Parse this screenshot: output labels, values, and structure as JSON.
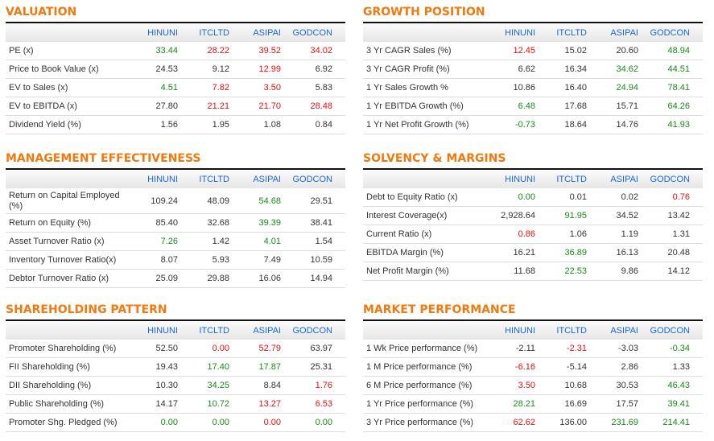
{
  "columns": [
    "HINUNI",
    "ITCLTD",
    "ASIPAI",
    "GODCON"
  ],
  "colors": {
    "positive": "#188a18",
    "negative": "#e81010",
    "title": "#f07a10",
    "header": "#1a66e0"
  },
  "panels": [
    {
      "title": "VALUATION",
      "rows": [
        {
          "label": "PE (x)",
          "values": [
            [
              "33.44",
              "g"
            ],
            [
              "28.22",
              "r"
            ],
            [
              "39.52",
              "r"
            ],
            [
              "34.02",
              "r"
            ]
          ]
        },
        {
          "label": "Price to Book Value (x)",
          "values": [
            [
              "24.53",
              ""
            ],
            [
              "9.12",
              ""
            ],
            [
              "12.99",
              "r"
            ],
            [
              "6.92",
              ""
            ]
          ]
        },
        {
          "label": "EV to Sales (x)",
          "values": [
            [
              "4.51",
              "g"
            ],
            [
              "7.82",
              "r"
            ],
            [
              "3.50",
              "r"
            ],
            [
              "5.83",
              ""
            ]
          ]
        },
        {
          "label": "EV to EBITDA (x)",
          "values": [
            [
              "27.80",
              ""
            ],
            [
              "21.21",
              "r"
            ],
            [
              "21.70",
              "r"
            ],
            [
              "28.48",
              "r"
            ]
          ]
        },
        {
          "label": "Dividend Yield (%)",
          "values": [
            [
              "1.56",
              ""
            ],
            [
              "1.95",
              ""
            ],
            [
              "1.08",
              ""
            ],
            [
              "0.84",
              ""
            ]
          ]
        }
      ]
    },
    {
      "title": "GROWTH POSITION",
      "rows": [
        {
          "label": "3 Yr CAGR Sales (%)",
          "values": [
            [
              "12.45",
              "r"
            ],
            [
              "15.02",
              ""
            ],
            [
              "20.60",
              ""
            ],
            [
              "48.94",
              "g"
            ]
          ]
        },
        {
          "label": "3 Yr CAGR Profit (%)",
          "values": [
            [
              "6.62",
              ""
            ],
            [
              "16.34",
              ""
            ],
            [
              "34.62",
              "g"
            ],
            [
              "44.51",
              "g"
            ]
          ]
        },
        {
          "label": "1 Yr Sales Growth %",
          "values": [
            [
              "10.86",
              ""
            ],
            [
              "16.40",
              ""
            ],
            [
              "24.94",
              "g"
            ],
            [
              "78.41",
              "g"
            ]
          ]
        },
        {
          "label": "1 Yr EBITDA Growth (%)",
          "values": [
            [
              "6.48",
              "g"
            ],
            [
              "17.68",
              ""
            ],
            [
              "15.71",
              ""
            ],
            [
              "64.26",
              "g"
            ]
          ]
        },
        {
          "label": "1 Yr Net Profit Growth (%)",
          "values": [
            [
              "-0.73",
              "g"
            ],
            [
              "18.64",
              ""
            ],
            [
              "14.76",
              ""
            ],
            [
              "41.93",
              "g"
            ]
          ]
        }
      ]
    },
    {
      "title": "MANAGEMENT EFFECTIVENESS",
      "rows": [
        {
          "label": "Return on Capital Employed (%)",
          "values": [
            [
              "109.24",
              ""
            ],
            [
              "48.09",
              ""
            ],
            [
              "54.68",
              "g"
            ],
            [
              "29.51",
              ""
            ]
          ]
        },
        {
          "label": "Return on Equity (%)",
          "values": [
            [
              "85.40",
              ""
            ],
            [
              "32.68",
              ""
            ],
            [
              "39.39",
              "g"
            ],
            [
              "38.41",
              ""
            ]
          ]
        },
        {
          "label": "Asset Turnover Ratio (x)",
          "values": [
            [
              "7.26",
              "g"
            ],
            [
              "1.42",
              ""
            ],
            [
              "4.01",
              "g"
            ],
            [
              "1.54",
              ""
            ]
          ]
        },
        {
          "label": "Inventory Turnover Ratio(x)",
          "values": [
            [
              "8.07",
              ""
            ],
            [
              "5.93",
              ""
            ],
            [
              "7.49",
              ""
            ],
            [
              "10.59",
              ""
            ]
          ]
        },
        {
          "label": "Debtor Turnover Ratio (x)",
          "values": [
            [
              "25.09",
              ""
            ],
            [
              "29.88",
              ""
            ],
            [
              "16.06",
              ""
            ],
            [
              "14.94",
              ""
            ]
          ]
        }
      ]
    },
    {
      "title": "SOLVENCY & MARGINS",
      "rows": [
        {
          "label": "Debt to Equity Ratio (x)",
          "values": [
            [
              "0.00",
              "g"
            ],
            [
              "0.01",
              ""
            ],
            [
              "0.02",
              ""
            ],
            [
              "0.76",
              "r"
            ]
          ]
        },
        {
          "label": "Interest Coverage(x)",
          "values": [
            [
              "2,928.64",
              ""
            ],
            [
              "91.95",
              "g"
            ],
            [
              "34.52",
              ""
            ],
            [
              "13.42",
              ""
            ]
          ]
        },
        {
          "label": "Current Ratio (x)",
          "values": [
            [
              "0.86",
              "r"
            ],
            [
              "1.06",
              ""
            ],
            [
              "1.19",
              ""
            ],
            [
              "1.31",
              ""
            ]
          ]
        },
        {
          "label": "EBITDA Margin (%)",
          "values": [
            [
              "16.21",
              ""
            ],
            [
              "36.89",
              "g"
            ],
            [
              "16.13",
              ""
            ],
            [
              "20.48",
              ""
            ]
          ]
        },
        {
          "label": "Net Profit Margin (%)",
          "values": [
            [
              "11.68",
              ""
            ],
            [
              "22.53",
              "g"
            ],
            [
              "9.86",
              ""
            ],
            [
              "14.12",
              ""
            ]
          ]
        }
      ]
    },
    {
      "title": "SHAREHOLDING PATTERN",
      "rows": [
        {
          "label": "Promoter Shareholding (%)",
          "values": [
            [
              "52.50",
              ""
            ],
            [
              "0.00",
              "r"
            ],
            [
              "52.79",
              "r"
            ],
            [
              "63.97",
              ""
            ]
          ]
        },
        {
          "label": "FII Shareholding (%)",
          "values": [
            [
              "19.43",
              ""
            ],
            [
              "17.40",
              "g"
            ],
            [
              "17.87",
              "g"
            ],
            [
              "25.31",
              ""
            ]
          ]
        },
        {
          "label": "DII Shareholding (%)",
          "values": [
            [
              "10.30",
              ""
            ],
            [
              "34.25",
              "g"
            ],
            [
              "8.84",
              ""
            ],
            [
              "1.76",
              "r"
            ]
          ]
        },
        {
          "label": "Public Shareholding (%)",
          "values": [
            [
              "14.17",
              ""
            ],
            [
              "10.72",
              "g"
            ],
            [
              "13.27",
              "r"
            ],
            [
              "6.53",
              "r"
            ]
          ]
        },
        {
          "label": "Promoter Shg. Pledged (%)",
          "values": [
            [
              "0.00",
              "g"
            ],
            [
              "0.00",
              "g"
            ],
            [
              "0.00",
              "r"
            ],
            [
              "0.00",
              "g"
            ]
          ]
        }
      ]
    },
    {
      "title": "MARKET PERFORMANCE",
      "rows": [
        {
          "label": "1 Wk Price performance (%)",
          "values": [
            [
              "-2.11",
              ""
            ],
            [
              "-2.31",
              "r"
            ],
            [
              "-3.03",
              ""
            ],
            [
              "-0.34",
              "g"
            ]
          ]
        },
        {
          "label": "1 M Price performance (%)",
          "values": [
            [
              "-6.16",
              "r"
            ],
            [
              "-5.14",
              ""
            ],
            [
              "2.86",
              ""
            ],
            [
              "1.33",
              ""
            ]
          ]
        },
        {
          "label": "6 M Price performance (%)",
          "values": [
            [
              "3.50",
              "r"
            ],
            [
              "10.68",
              ""
            ],
            [
              "30.53",
              ""
            ],
            [
              "46.43",
              "g"
            ]
          ]
        },
        {
          "label": "1 Yr Price performance (%)",
          "values": [
            [
              "28.21",
              "g"
            ],
            [
              "16.69",
              ""
            ],
            [
              "17.57",
              ""
            ],
            [
              "39.41",
              "g"
            ]
          ]
        },
        {
          "label": "3 Yr Price performance (%)",
          "values": [
            [
              "62.62",
              "r"
            ],
            [
              "136.00",
              ""
            ],
            [
              "231.69",
              "g"
            ],
            [
              "214.41",
              "g"
            ]
          ]
        }
      ]
    }
  ]
}
